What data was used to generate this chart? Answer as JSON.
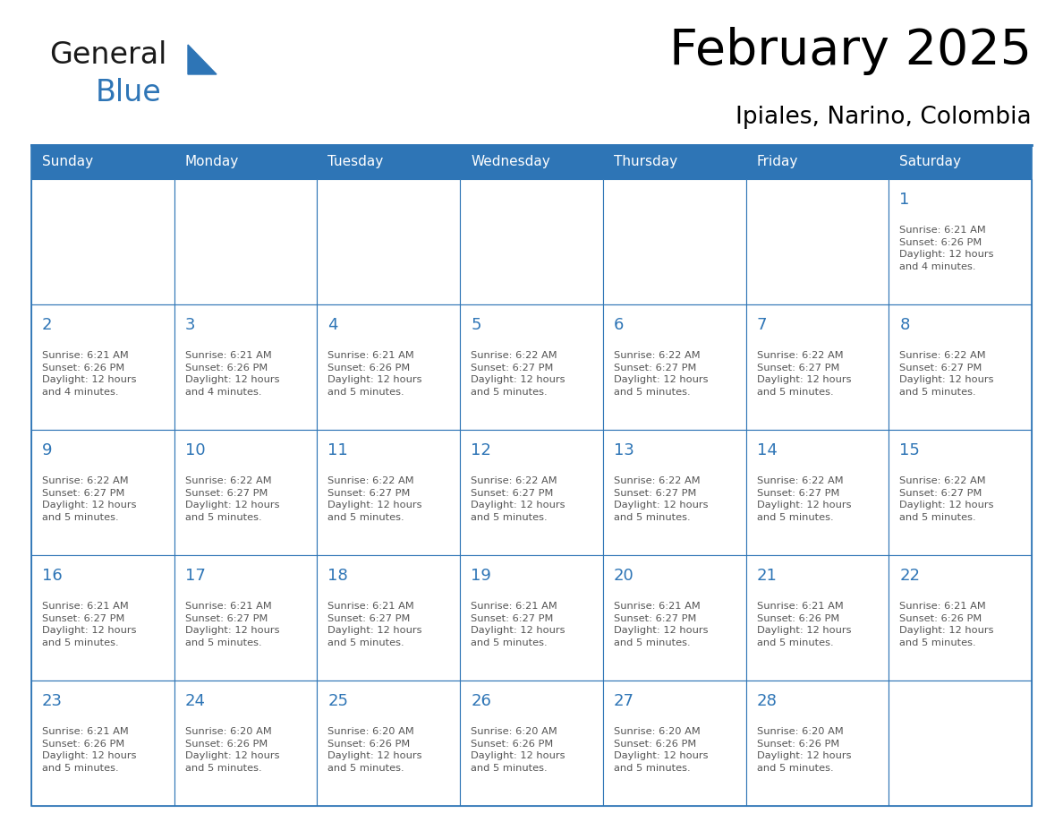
{
  "title": "February 2025",
  "subtitle": "Ipiales, Narino, Colombia",
  "header_color": "#2E75B6",
  "header_text_color": "#FFFFFF",
  "cell_bg_color": "#FFFFFF",
  "cell_border_color": "#2E75B6",
  "day_number_color": "#2E75B6",
  "cell_text_color": "#555555",
  "weekdays": [
    "Sunday",
    "Monday",
    "Tuesday",
    "Wednesday",
    "Thursday",
    "Friday",
    "Saturday"
  ],
  "calendar_data": [
    [
      null,
      null,
      null,
      null,
      null,
      null,
      {
        "day": 1,
        "sunrise": "6:21 AM",
        "sunset": "6:26 PM",
        "daylight": "12 hours\nand 4 minutes."
      }
    ],
    [
      {
        "day": 2,
        "sunrise": "6:21 AM",
        "sunset": "6:26 PM",
        "daylight": "12 hours\nand 4 minutes."
      },
      {
        "day": 3,
        "sunrise": "6:21 AM",
        "sunset": "6:26 PM",
        "daylight": "12 hours\nand 4 minutes."
      },
      {
        "day": 4,
        "sunrise": "6:21 AM",
        "sunset": "6:26 PM",
        "daylight": "12 hours\nand 5 minutes."
      },
      {
        "day": 5,
        "sunrise": "6:22 AM",
        "sunset": "6:27 PM",
        "daylight": "12 hours\nand 5 minutes."
      },
      {
        "day": 6,
        "sunrise": "6:22 AM",
        "sunset": "6:27 PM",
        "daylight": "12 hours\nand 5 minutes."
      },
      {
        "day": 7,
        "sunrise": "6:22 AM",
        "sunset": "6:27 PM",
        "daylight": "12 hours\nand 5 minutes."
      },
      {
        "day": 8,
        "sunrise": "6:22 AM",
        "sunset": "6:27 PM",
        "daylight": "12 hours\nand 5 minutes."
      }
    ],
    [
      {
        "day": 9,
        "sunrise": "6:22 AM",
        "sunset": "6:27 PM",
        "daylight": "12 hours\nand 5 minutes."
      },
      {
        "day": 10,
        "sunrise": "6:22 AM",
        "sunset": "6:27 PM",
        "daylight": "12 hours\nand 5 minutes."
      },
      {
        "day": 11,
        "sunrise": "6:22 AM",
        "sunset": "6:27 PM",
        "daylight": "12 hours\nand 5 minutes."
      },
      {
        "day": 12,
        "sunrise": "6:22 AM",
        "sunset": "6:27 PM",
        "daylight": "12 hours\nand 5 minutes."
      },
      {
        "day": 13,
        "sunrise": "6:22 AM",
        "sunset": "6:27 PM",
        "daylight": "12 hours\nand 5 minutes."
      },
      {
        "day": 14,
        "sunrise": "6:22 AM",
        "sunset": "6:27 PM",
        "daylight": "12 hours\nand 5 minutes."
      },
      {
        "day": 15,
        "sunrise": "6:22 AM",
        "sunset": "6:27 PM",
        "daylight": "12 hours\nand 5 minutes."
      }
    ],
    [
      {
        "day": 16,
        "sunrise": "6:21 AM",
        "sunset": "6:27 PM",
        "daylight": "12 hours\nand 5 minutes."
      },
      {
        "day": 17,
        "sunrise": "6:21 AM",
        "sunset": "6:27 PM",
        "daylight": "12 hours\nand 5 minutes."
      },
      {
        "day": 18,
        "sunrise": "6:21 AM",
        "sunset": "6:27 PM",
        "daylight": "12 hours\nand 5 minutes."
      },
      {
        "day": 19,
        "sunrise": "6:21 AM",
        "sunset": "6:27 PM",
        "daylight": "12 hours\nand 5 minutes."
      },
      {
        "day": 20,
        "sunrise": "6:21 AM",
        "sunset": "6:27 PM",
        "daylight": "12 hours\nand 5 minutes."
      },
      {
        "day": 21,
        "sunrise": "6:21 AM",
        "sunset": "6:26 PM",
        "daylight": "12 hours\nand 5 minutes."
      },
      {
        "day": 22,
        "sunrise": "6:21 AM",
        "sunset": "6:26 PM",
        "daylight": "12 hours\nand 5 minutes."
      }
    ],
    [
      {
        "day": 23,
        "sunrise": "6:21 AM",
        "sunset": "6:26 PM",
        "daylight": "12 hours\nand 5 minutes."
      },
      {
        "day": 24,
        "sunrise": "6:20 AM",
        "sunset": "6:26 PM",
        "daylight": "12 hours\nand 5 minutes."
      },
      {
        "day": 25,
        "sunrise": "6:20 AM",
        "sunset": "6:26 PM",
        "daylight": "12 hours\nand 5 minutes."
      },
      {
        "day": 26,
        "sunrise": "6:20 AM",
        "sunset": "6:26 PM",
        "daylight": "12 hours\nand 5 minutes."
      },
      {
        "day": 27,
        "sunrise": "6:20 AM",
        "sunset": "6:26 PM",
        "daylight": "12 hours\nand 5 minutes."
      },
      {
        "day": 28,
        "sunrise": "6:20 AM",
        "sunset": "6:26 PM",
        "daylight": "12 hours\nand 5 minutes."
      },
      null
    ]
  ],
  "logo_text1": "General",
  "logo_text2": "Blue",
  "logo_color1": "#1a1a1a",
  "logo_color2": "#2E75B6",
  "logo_triangle_color": "#2E75B6",
  "fig_width": 11.88,
  "fig_height": 9.18,
  "dpi": 100
}
